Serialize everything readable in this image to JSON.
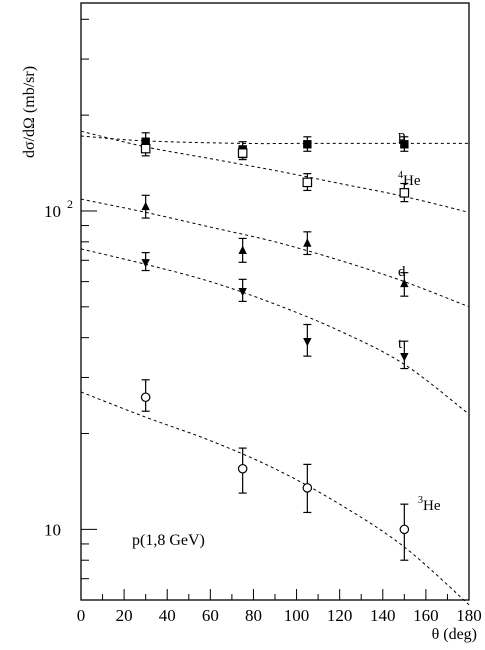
{
  "chart_data": {
    "type": "scatter",
    "ylabel": "dσ/dΩ (mb/sr)",
    "xlabel": "θ (deg)",
    "annotation": "p(1,8 GeV)",
    "xlim": [
      0,
      180
    ],
    "ylim": [
      6,
      450
    ],
    "yscale": "log",
    "x_ticks": [
      0,
      20,
      40,
      60,
      80,
      100,
      120,
      140,
      160,
      180
    ],
    "x_tick_labels": [
      "0",
      "20",
      "40",
      "60",
      "80",
      "100",
      "120",
      "140",
      "160",
      "180"
    ],
    "y_tick_labels": [
      {
        "value": 100,
        "base": "10",
        "exp": "2"
      },
      {
        "value": 10,
        "base": "10",
        "exp": ""
      }
    ],
    "grid": false,
    "series": [
      {
        "name": "p",
        "sup": "",
        "marker": "filled-square",
        "x": [
          30,
          75,
          105,
          150
        ],
        "y": [
          165,
          156,
          162,
          162
        ],
        "err": [
          [
            154,
            176
          ],
          [
            147,
            165
          ],
          [
            154,
            171
          ],
          [
            154,
            171
          ]
        ],
        "fit": [
          [
            0,
            172
          ],
          [
            30,
            166
          ],
          [
            75,
            163
          ],
          [
            105,
            163
          ],
          [
            150,
            163
          ],
          [
            180,
            163
          ]
        ]
      },
      {
        "name": "He",
        "sup": "4",
        "marker": "open-square",
        "x": [
          30,
          75,
          105,
          150
        ],
        "y": [
          157,
          152,
          123,
          114
        ],
        "err": [
          [
            149,
            165
          ],
          [
            145,
            160
          ],
          [
            116,
            131
          ],
          [
            107,
            122
          ]
        ],
        "fit": [
          [
            0,
            178
          ],
          [
            30,
            159
          ],
          [
            60,
            146
          ],
          [
            90,
            134
          ],
          [
            120,
            122
          ],
          [
            150,
            111
          ],
          [
            180,
            99
          ]
        ]
      },
      {
        "name": "d",
        "sup": "",
        "marker": "filled-triangle-up",
        "x": [
          30,
          75,
          105,
          150
        ],
        "y": [
          103,
          75,
          79,
          59
        ],
        "err": [
          [
            95,
            112
          ],
          [
            69,
            82
          ],
          [
            73,
            86
          ],
          [
            54,
            64
          ]
        ],
        "fit": [
          [
            0,
            109
          ],
          [
            30,
            99
          ],
          [
            60,
            89
          ],
          [
            90,
            80
          ],
          [
            120,
            70
          ],
          [
            150,
            60
          ],
          [
            180,
            50
          ]
        ]
      },
      {
        "name": "t",
        "sup": "",
        "marker": "filled-triangle-down",
        "x": [
          30,
          75,
          105,
          150
        ],
        "y": [
          69,
          56,
          39,
          35
        ],
        "err": [
          [
            65,
            74
          ],
          [
            52,
            61
          ],
          [
            35,
            44
          ],
          [
            32,
            39
          ]
        ],
        "fit": [
          [
            0,
            76
          ],
          [
            30,
            68
          ],
          [
            60,
            60
          ],
          [
            90,
            51
          ],
          [
            120,
            42
          ],
          [
            150,
            33
          ],
          [
            180,
            23
          ]
        ]
      },
      {
        "name": "He",
        "sup": "3",
        "marker": "open-circle",
        "x": [
          30,
          75,
          105,
          150
        ],
        "y": [
          26,
          15.5,
          13.5,
          10
        ],
        "err": [
          [
            23.5,
            29.5
          ],
          [
            13,
            18
          ],
          [
            11.3,
            16
          ],
          [
            8,
            12
          ]
        ],
        "fit": [
          [
            0,
            27
          ],
          [
            30,
            22.5
          ],
          [
            60,
            19
          ],
          [
            90,
            15.5
          ],
          [
            120,
            12
          ],
          [
            150,
            8.8
          ],
          [
            180,
            5.8
          ]
        ]
      }
    ]
  }
}
